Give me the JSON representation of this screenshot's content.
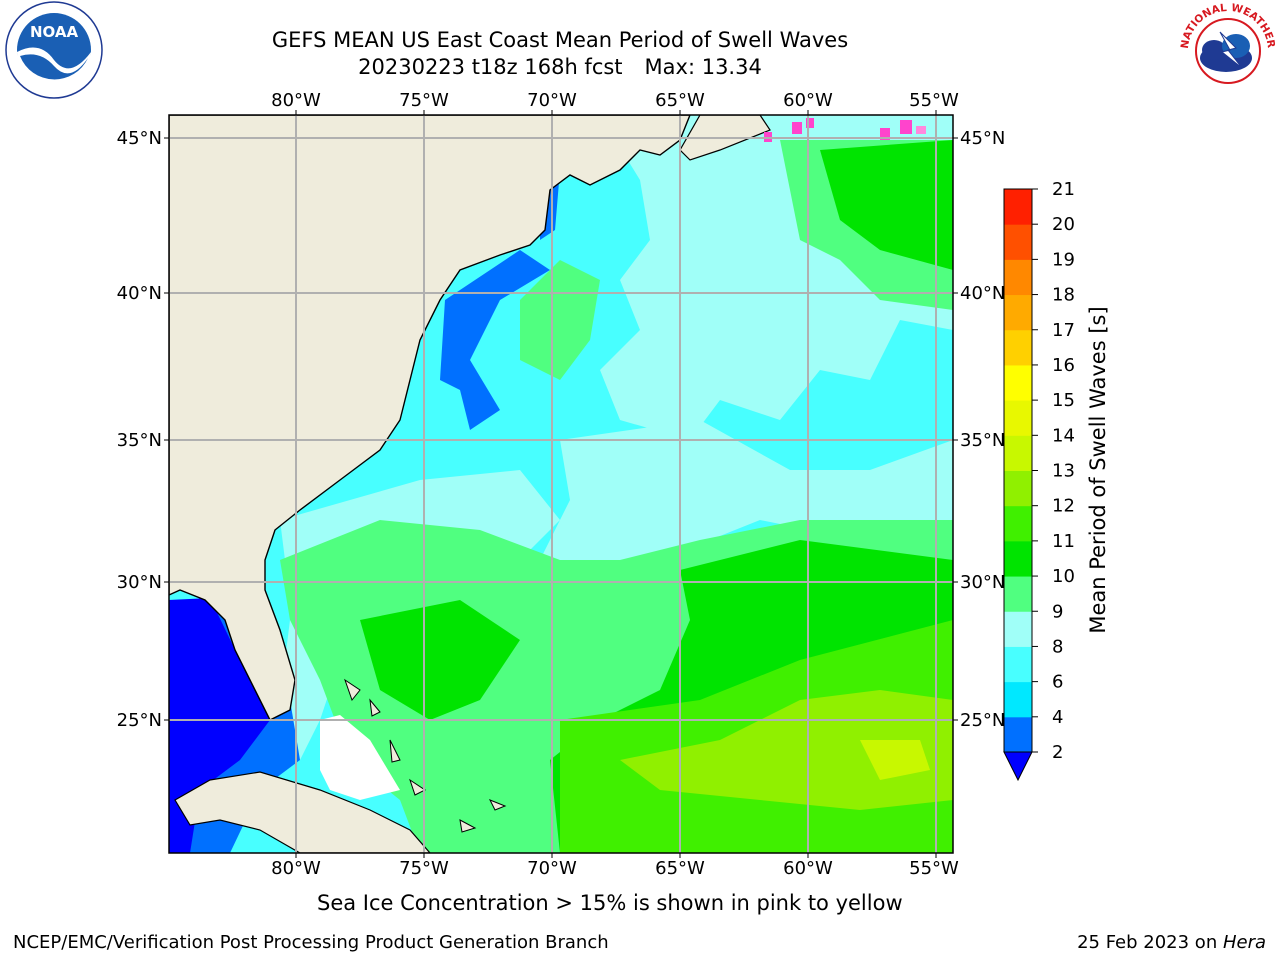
{
  "header": {
    "title": "GEFS MEAN US East Coast Mean Period of Swell Waves",
    "run": "20230223 t18z 168h fcst",
    "max": "Max: 13.34"
  },
  "map": {
    "lon_labels": [
      "80°W",
      "75°W",
      "70°W",
      "65°W",
      "60°W",
      "55°W"
    ],
    "lat_labels": [
      "45°N",
      "40°N",
      "35°N",
      "30°N",
      "25°N"
    ],
    "extent": {
      "lon_min": -85,
      "lon_max": -54.3,
      "lat_min": 20.3,
      "lat_max": 45.8
    },
    "land_color": "#efecdc",
    "grid_color": "#b0b0b0"
  },
  "colorbar": {
    "label": "Mean Period of Swell Waves [s]",
    "ticks": [
      "2",
      "4",
      "6",
      "8",
      "9",
      "10",
      "11",
      "12",
      "13",
      "14",
      "15",
      "16",
      "17",
      "18",
      "19",
      "20",
      "21"
    ],
    "colors": [
      "#0070ff",
      "#00e8ff",
      "#48ffff",
      "#a0fff8",
      "#50ff80",
      "#00e400",
      "#40f000",
      "#90f000",
      "#c8f800",
      "#e8f800",
      "#ffff00",
      "#ffd000",
      "#ffaa00",
      "#ff8800",
      "#ff5000",
      "#ff2000",
      "#ff0000"
    ],
    "under_color": "#0000ff"
  },
  "notes": {
    "sea_ice": "Sea Ice Concentration > 15% is shown in pink to yellow"
  },
  "footer": {
    "left": "NCEP/EMC/Verification Post Processing Product Generation Branch",
    "date": "25 Feb 2023 on ",
    "host": "Hera"
  },
  "logos": {
    "noaa": "NOAA",
    "nws": "NATIONAL WEATHER SERVICE"
  }
}
